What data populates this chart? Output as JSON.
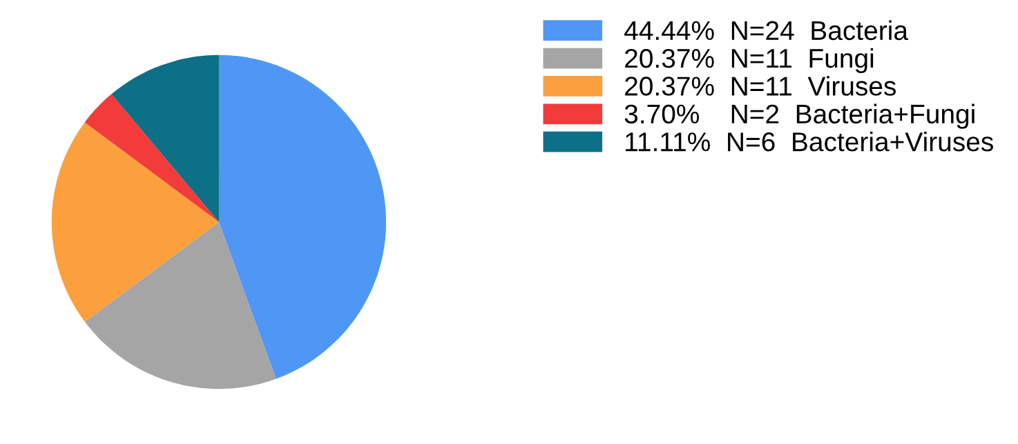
{
  "chart_data": {
    "type": "pie",
    "categories": [
      "Bacteria",
      "Fungi",
      "Viruses",
      "Bacteria+Fungi",
      "Bacteria+Viruses"
    ],
    "values": [
      24,
      11,
      11,
      2,
      6
    ],
    "value_labels": [
      "44.44%  N=24",
      "20.37%  N=11",
      "20.37%  N=11",
      "3.70%    N=2",
      "11.11%  N=6"
    ],
    "colors": [
      "#4f97f5",
      "#a5a5a5",
      "#fba03d",
      "#f23b3b",
      "#0d7087"
    ],
    "legend": "right"
  }
}
